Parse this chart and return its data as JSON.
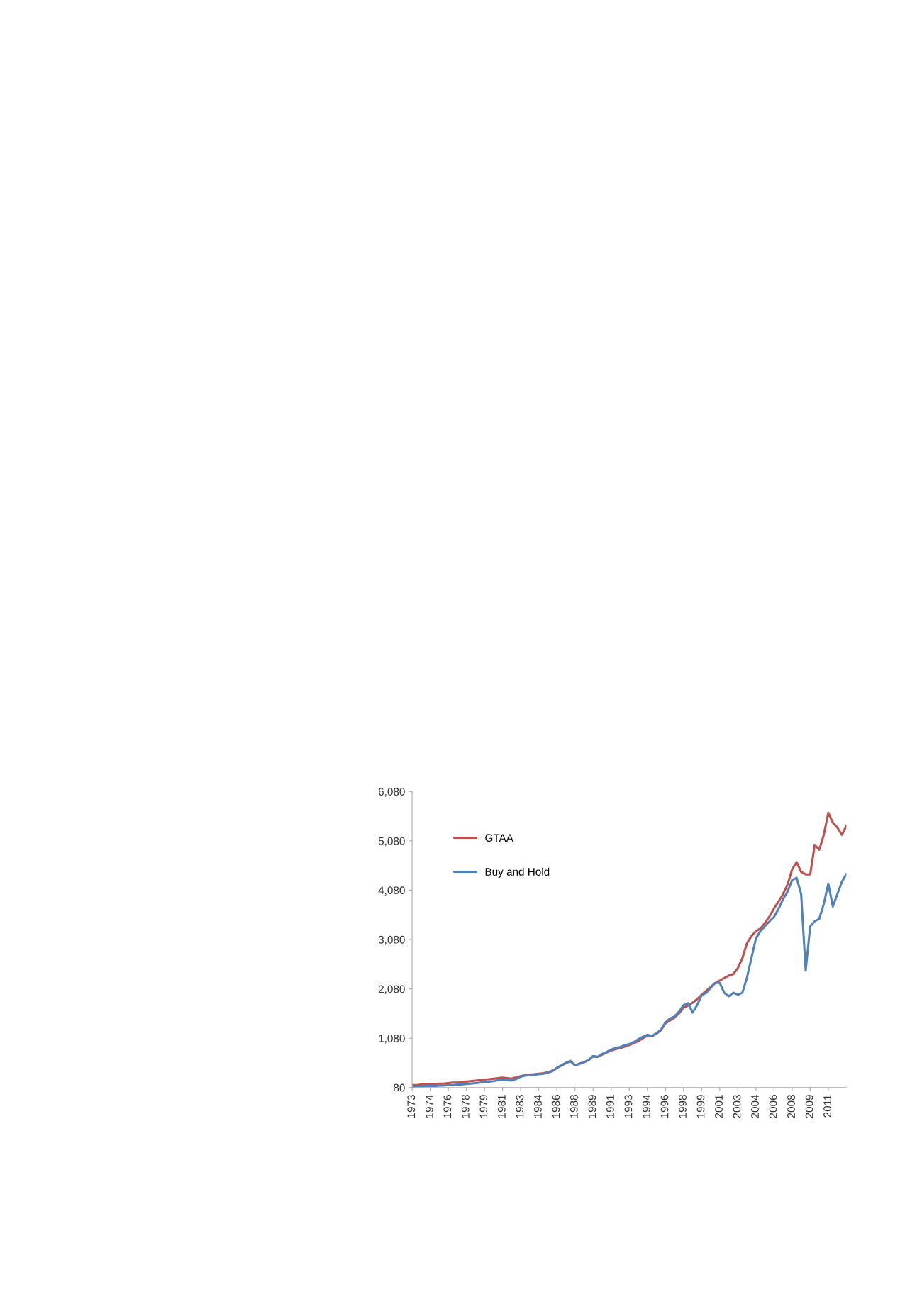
{
  "chart_data": {
    "type": "line",
    "categories": [
      "1973",
      null,
      null,
      null,
      "1974",
      null,
      null,
      null,
      "1976",
      null,
      null,
      null,
      "1978",
      null,
      null,
      null,
      "1979",
      null,
      null,
      null,
      "1981",
      null,
      null,
      null,
      "1983",
      null,
      null,
      null,
      "1984",
      null,
      null,
      null,
      "1986",
      null,
      null,
      null,
      "1988",
      null,
      null,
      null,
      "1989",
      null,
      null,
      null,
      "1991",
      null,
      null,
      null,
      "1993",
      null,
      null,
      null,
      "1994",
      null,
      null,
      null,
      "1996",
      null,
      null,
      null,
      "1998",
      null,
      null,
      null,
      "1999",
      null,
      null,
      null,
      "2001",
      null,
      null,
      null,
      "2003",
      null,
      null,
      null,
      "2004",
      null,
      null,
      null,
      "2006",
      null,
      null,
      null,
      "2008",
      null,
      null,
      null,
      "2009",
      null,
      null,
      null,
      "2011",
      null,
      null,
      null,
      null
    ],
    "series": [
      {
        "name": "GTAA",
        "color": "#c0504d",
        "values": [
          130,
          130,
          140,
          140,
          150,
          150,
          160,
          160,
          170,
          180,
          180,
          190,
          200,
          210,
          220,
          230,
          240,
          250,
          260,
          270,
          280,
          270,
          260,
          290,
          310,
          330,
          340,
          350,
          360,
          370,
          390,
          420,
          475,
          525,
          575,
          615,
          530,
          565,
          595,
          635,
          710,
          700,
          745,
          790,
          830,
          860,
          880,
          910,
          940,
          980,
          1020,
          1080,
          1130,
          1120,
          1170,
          1240,
          1380,
          1440,
          1500,
          1580,
          1700,
          1740,
          1800,
          1870,
          1960,
          2040,
          2120,
          2200,
          2250,
          2300,
          2350,
          2380,
          2500,
          2700,
          3000,
          3150,
          3250,
          3300,
          3420,
          3550,
          3710,
          3850,
          4000,
          4200,
          4500,
          4650,
          4450,
          4400,
          4400,
          5000,
          4900,
          5200,
          5650,
          5450,
          5350,
          5200,
          5386
        ]
      },
      {
        "name": "Buy and Hold",
        "color": "#4f81bd",
        "values": [
          100,
          100,
          100,
          110,
          110,
          110,
          120,
          120,
          130,
          130,
          140,
          140,
          150,
          160,
          170,
          180,
          190,
          200,
          210,
          230,
          240,
          230,
          220,
          250,
          300,
          320,
          330,
          340,
          350,
          360,
          380,
          410,
          480,
          530,
          580,
          620,
          530,
          560,
          590,
          640,
          720,
          700,
          760,
          800,
          850,
          880,
          900,
          940,
          960,
          1000,
          1060,
          1110,
          1150,
          1120,
          1180,
          1250,
          1400,
          1480,
          1520,
          1620,
          1750,
          1790,
          1600,
          1750,
          1950,
          2000,
          2100,
          2200,
          2200,
          2000,
          1930,
          2000,
          1960,
          2000,
          2300,
          2700,
          3100,
          3250,
          3350,
          3450,
          3540,
          3700,
          3900,
          4050,
          4285,
          4330,
          4000,
          2450,
          3350,
          3450,
          3500,
          3800,
          4213,
          3750,
          4000,
          4250,
          4404
        ]
      }
    ],
    "ylim": [
      80,
      6080
    ],
    "yticks": [
      {
        "value": 80,
        "label": "80"
      },
      {
        "value": 1080,
        "label": "1,080"
      },
      {
        "value": 2080,
        "label": "2,080"
      },
      {
        "value": 3080,
        "label": "3,080"
      },
      {
        "value": 4080,
        "label": "4,080"
      },
      {
        "value": 5080,
        "label": "5,080"
      },
      {
        "value": 6080,
        "label": "6,080"
      }
    ],
    "legend": "top left",
    "grid": false
  }
}
